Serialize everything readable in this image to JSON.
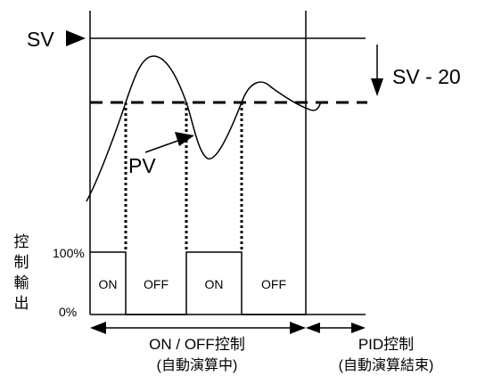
{
  "labels": {
    "sv": "SV",
    "sv_minus": "SV - 20",
    "pv": "PV",
    "output_axis": "控制輸出",
    "pct_100": "100%",
    "pct_0": "0%",
    "on": "ON",
    "off": "OFF",
    "onoff_title": "ON / OFF控制",
    "onoff_sub": "(自動演算中)",
    "pid_title": "PID控制",
    "pid_sub": "(自動演算結束)"
  },
  "output_sequence": [
    "ON",
    "OFF",
    "ON",
    "OFF"
  ]
}
